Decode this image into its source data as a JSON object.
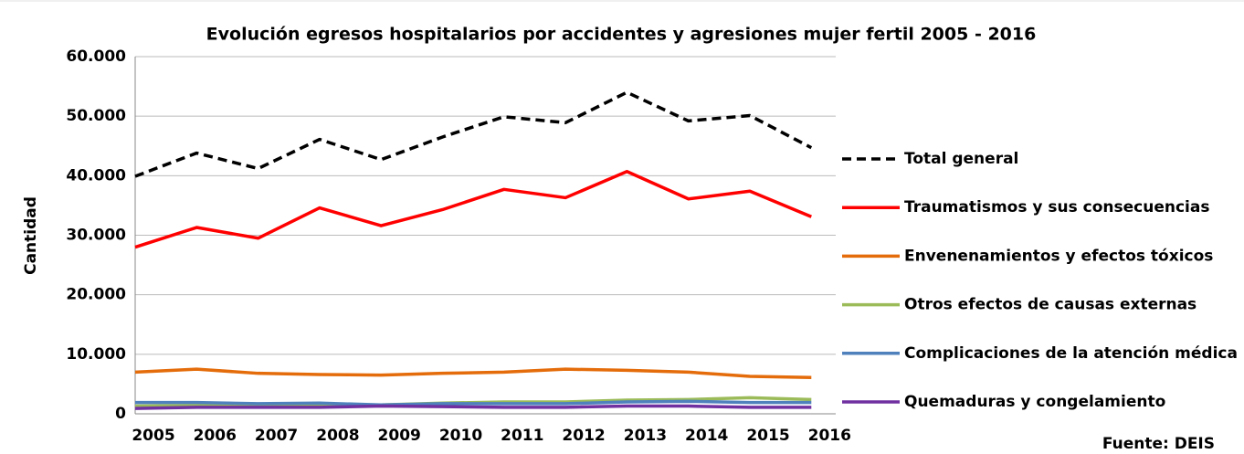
{
  "chart_data": {
    "type": "line",
    "title": "Evolución egresos hospitalarios por accidentes y agresiones mujer fertil 2005 - 2016",
    "ylabel": "Cantidad",
    "source": "Fuente: DEIS",
    "categories": [
      "2005",
      "2006",
      "2007",
      "2008",
      "2009",
      "2010",
      "2011",
      "2012",
      "2013",
      "2014",
      "2015",
      "2016"
    ],
    "series": [
      {
        "name": "Total general",
        "color": "#000000",
        "dashed": true,
        "values": [
          39900,
          43800,
          41200,
          46100,
          42700,
          46500,
          49900,
          48900,
          54000,
          49200,
          50100,
          44700
        ]
      },
      {
        "name": "Traumatismos y sus consecuencias",
        "color": "#ff0000",
        "values": [
          28000,
          31300,
          29500,
          34600,
          31600,
          34300,
          37700,
          36300,
          40700,
          36100,
          37400,
          33100
        ]
      },
      {
        "name": "Envenenamientos y efectos tóxicos",
        "color": "#e46c0a",
        "values": [
          7000,
          7500,
          6800,
          6600,
          6500,
          6800,
          7000,
          7500,
          7300,
          7000,
          6300,
          6100
        ]
      },
      {
        "name": "Otros efectos de causas externas",
        "color": "#9bbb59",
        "values": [
          1300,
          1400,
          1400,
          1400,
          1500,
          1800,
          2000,
          2000,
          2300,
          2400,
          2700,
          2400
        ]
      },
      {
        "name": "Complicaciones de la atención médica",
        "color": "#4f81bd",
        "values": [
          1900,
          1900,
          1700,
          1800,
          1500,
          1700,
          1700,
          1700,
          2000,
          2100,
          1900,
          1900
        ]
      },
      {
        "name": "Quemaduras y congelamiento",
        "color": "#7030a0",
        "values": [
          900,
          1100,
          1100,
          1100,
          1300,
          1200,
          1100,
          1100,
          1300,
          1300,
          1100,
          1100
        ]
      }
    ],
    "ylim": [
      0,
      60000
    ],
    "yticks": [
      0,
      {
        "value": 10000,
        "label": "10.000"
      },
      {
        "value": 20000,
        "label": "20.000"
      },
      {
        "value": 30000,
        "label": "30.000"
      },
      {
        "value": 40000,
        "label": "40.000"
      },
      {
        "value": 50000,
        "label": "50.000"
      },
      {
        "value": 60000,
        "label": "60.000"
      }
    ],
    "grid": true,
    "legend": "right"
  }
}
